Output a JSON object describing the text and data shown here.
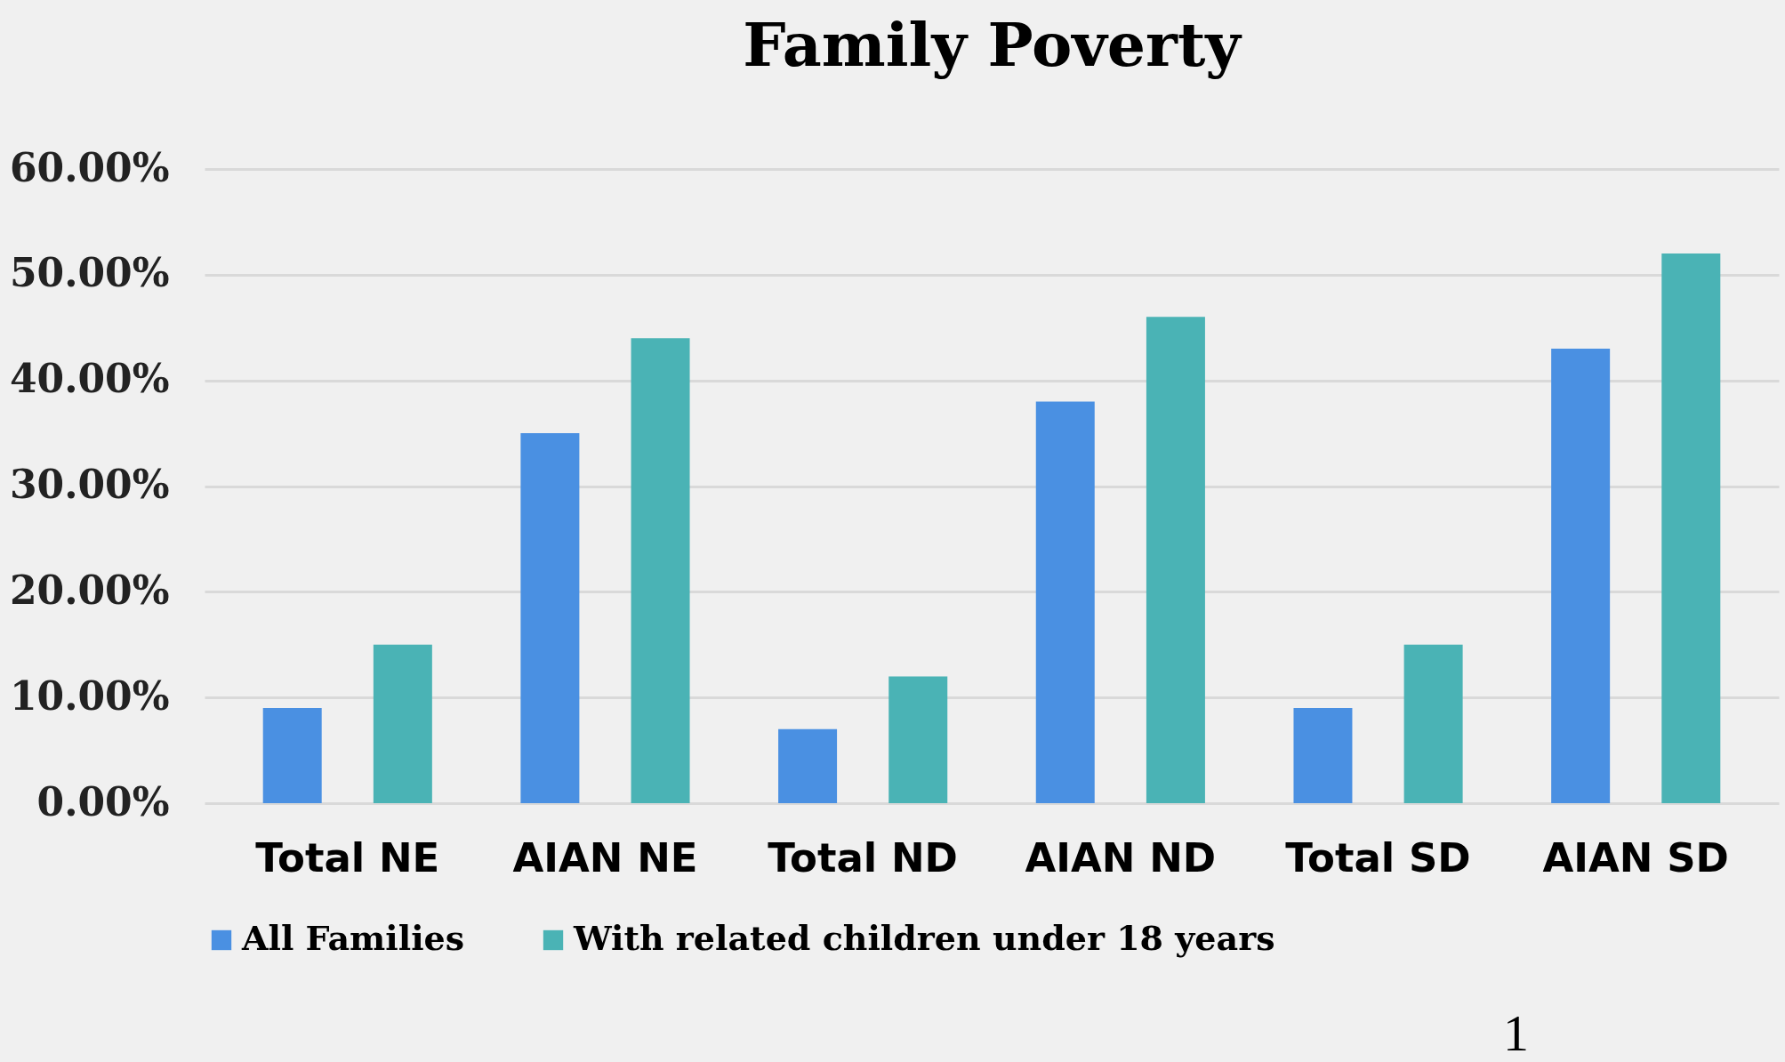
{
  "chart_data": {
    "type": "bar",
    "title": "Family Poverty",
    "categories": [
      "Total NE",
      "AIAN NE",
      "Total ND",
      "AIAN ND",
      "Total SD",
      "AIAN SD"
    ],
    "series": [
      {
        "name": "All Families",
        "color": "#4a90e2",
        "values": [
          9,
          35,
          7,
          38,
          9,
          43
        ]
      },
      {
        "name": "With related children under 18 years",
        "color": "#4ab3b5",
        "values": [
          15,
          44,
          12,
          46,
          15,
          52
        ]
      }
    ],
    "ylim": [
      0,
      60
    ],
    "yticks": [
      {
        "value": 0,
        "label": "0.00%"
      },
      {
        "value": 10,
        "label": "10.00%"
      },
      {
        "value": 20,
        "label": "20.00%"
      },
      {
        "value": 30,
        "label": "30.00%"
      },
      {
        "value": 40,
        "label": "40.00%"
      },
      {
        "value": 50,
        "label": "50.00%"
      },
      {
        "value": 60,
        "label": "60.00%"
      }
    ],
    "grid": "y",
    "legend": "bottom",
    "annotations": [
      "1"
    ]
  }
}
